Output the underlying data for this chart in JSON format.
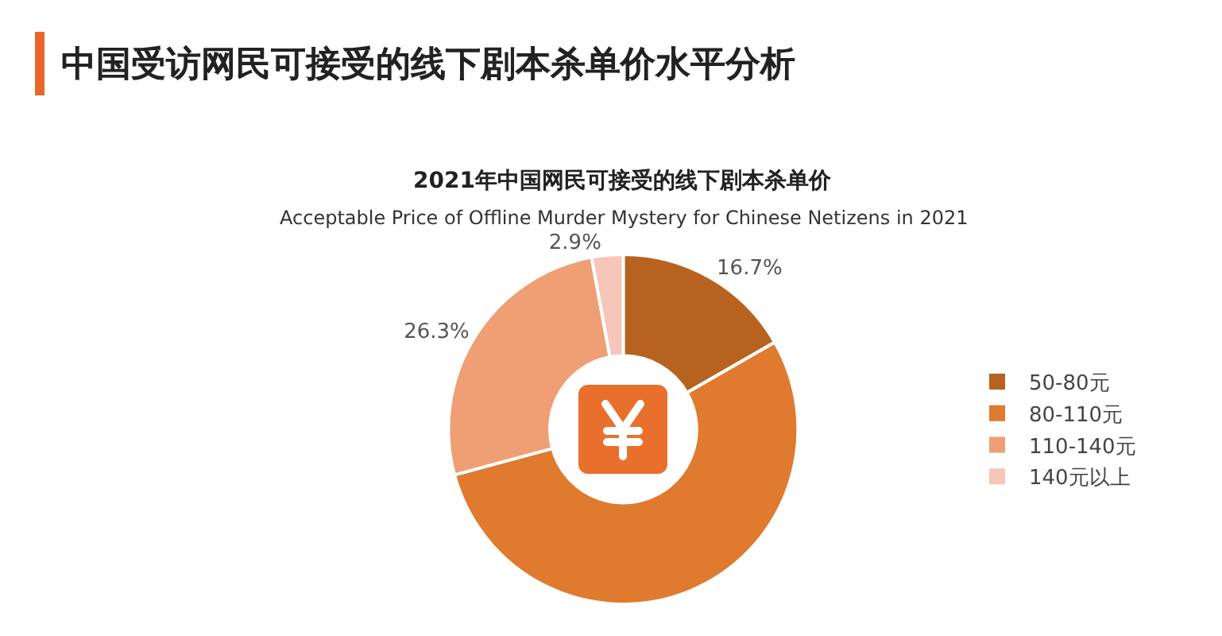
{
  "chart_data": {
    "type": "donut",
    "title": "中国受访网民可接受的线下剧本杀单价水平分析",
    "subtitle": "2021年中国网民可接受的线下剧本杀单价",
    "annotations": [
      "Acceptable Price of Offline Murder Mystery for Chinese Netizens in 2021"
    ],
    "categories": [
      "50-80元",
      "80-110元",
      "110-140元",
      "140元以上"
    ],
    "values": [
      16.7,
      54.1,
      26.3,
      2.9
    ],
    "value_labels": [
      "16.7%",
      null,
      "26.3%",
      "2.9%"
    ],
    "colors": [
      "#b8621f",
      "#e07a2e",
      "#ef9f73",
      "#f6c6b9"
    ],
    "legend": "right"
  }
}
